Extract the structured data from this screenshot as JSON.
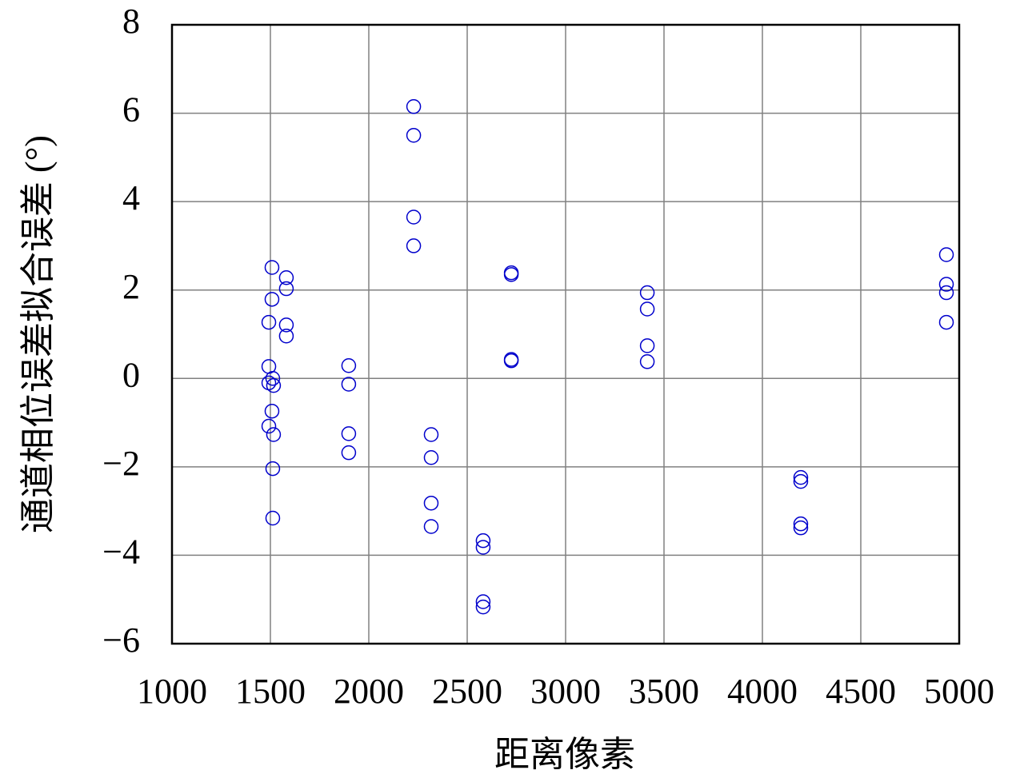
{
  "chart_data": {
    "type": "scatter",
    "x_label": "距离像素",
    "y_label": "通道相位误差拟合误差 (°)",
    "xlim": [
      1000,
      5000
    ],
    "ylim": [
      -6,
      8
    ],
    "xticks": [
      1000,
      1500,
      2000,
      2500,
      3000,
      3500,
      4000,
      4500,
      5000
    ],
    "yticks": [
      {
        "value": -6,
        "label": "−6"
      },
      {
        "value": -4,
        "label": "−4"
      },
      {
        "value": -2,
        "label": "−2"
      },
      0,
      2,
      4,
      6,
      8
    ],
    "grid": true,
    "marker": "open-circle",
    "series": [
      {
        "color": "#0000cc",
        "x": [
          1492,
          1492,
          1492,
          1492,
          1508,
          1508,
          1508,
          1512,
          1512,
          1512,
          1516,
          1516,
          1581,
          1581,
          1581,
          1581,
          1898,
          1898,
          1898,
          1898,
          2228,
          2228,
          2228,
          2228,
          2317,
          2317,
          2317,
          2317,
          2581,
          2581,
          2581,
          2581,
          2724,
          2724,
          2724,
          2724,
          3415,
          3415,
          3415,
          3415,
          4195,
          4195,
          4195,
          4195,
          4935,
          4935,
          4935,
          4935
        ],
        "values": [
          0.27,
          -0.1,
          -1.08,
          1.27,
          2.51,
          1.79,
          -0.74,
          0,
          -2.04,
          -3.16,
          -1.27,
          -0.16,
          2.28,
          2.03,
          1.21,
          0.96,
          0.29,
          -0.13,
          -1.25,
          -1.68,
          6.15,
          5.5,
          3.65,
          3.0,
          -1.27,
          -1.79,
          -2.82,
          -3.35,
          -3.67,
          -3.82,
          -5.05,
          -5.17,
          2.39,
          2.35,
          0.43,
          0.4,
          1.94,
          1.57,
          0.74,
          0.38,
          -2.24,
          -2.33,
          -3.29,
          -3.38,
          2.8,
          2.13,
          1.94,
          1.27
        ]
      }
    ]
  }
}
